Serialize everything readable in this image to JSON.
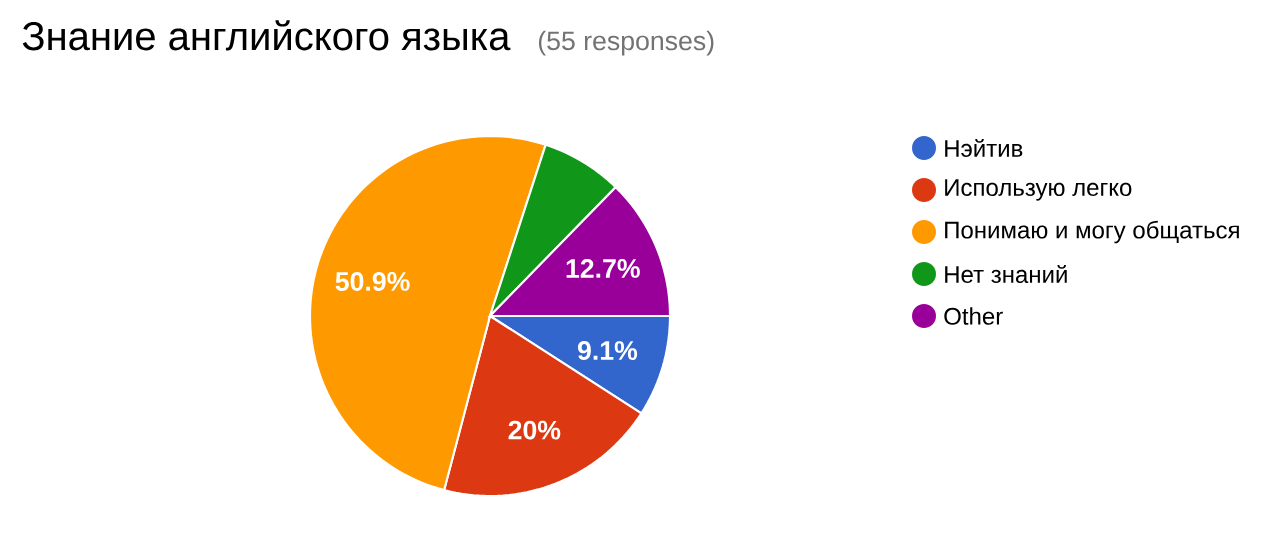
{
  "chart_data": {
    "type": "pie",
    "title": "Знание английского языка",
    "subtitle": "(55 responses)",
    "categories": [
      "Нэйтив",
      "Использую легко",
      "Понимаю и могу общаться",
      "Нет знаний",
      "Other"
    ],
    "values": [
      9.1,
      20,
      50.9,
      7.3,
      12.7
    ],
    "colors": [
      "#3366cc",
      "#dc3912",
      "#ff9900",
      "#109618",
      "#990099"
    ],
    "value_labels": [
      "9.1%",
      "20%",
      "50.9%",
      null,
      "12.7%"
    ],
    "legend": "right"
  }
}
